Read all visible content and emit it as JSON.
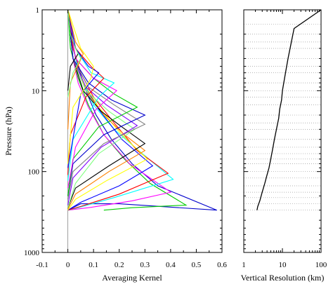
{
  "chart_data": [
    {
      "type": "line",
      "xlabel": "Averaging Kernel",
      "ylabel": "Pressure (hPa)",
      "xlim": [
        -0.1,
        0.6
      ],
      "ylim": [
        1000,
        1
      ],
      "y_scale": "log",
      "x_ticks": [
        "-0.1",
        "0",
        "0.1",
        "0.2",
        "0.3",
        "0.4",
        "0.5",
        "0.6"
      ],
      "y_ticks": [
        "1",
        "10",
        "100",
        "1000"
      ],
      "y_tick_values": [
        1,
        10,
        100,
        1000
      ],
      "colors": [
        "#0000cc",
        "#00cc00",
        "#ff00ff",
        "#00ffff",
        "#ff0000",
        "#0000ff",
        "#ffff00",
        "#ff8000",
        "#000000",
        "#80ff80",
        "#8000ff",
        "#808080"
      ],
      "series": [
        {
          "x": [
            0,
            0.01,
            0.02,
            0.04,
            0.07,
            0.11,
            0.17,
            0.25,
            0.35,
            0.58,
            0.2,
            0.05,
            0
          ],
          "y": [
            1,
            2,
            3,
            5,
            10,
            20,
            40,
            80,
            150,
            300,
            250,
            250,
            300
          ]
        },
        {
          "x": [
            0,
            0.01,
            0.04,
            0.08,
            0.14,
            0.22,
            0.32,
            0.46,
            0.25,
            0.14
          ],
          "y": [
            1,
            3,
            7,
            15,
            35,
            70,
            140,
            260,
            280,
            300
          ]
        },
        {
          "x": [
            0,
            0.01,
            0.02,
            0.04,
            0.08,
            0.14,
            0.24,
            0.4,
            0.25,
            0.08,
            0
          ],
          "y": [
            1,
            2,
            4,
            8,
            16,
            35,
            80,
            180,
            230,
            280,
            300
          ]
        },
        {
          "x": [
            0,
            0.02,
            0.05,
            0.1,
            0.18,
            0.29,
            0.41,
            0.18,
            0.04,
            0
          ],
          "y": [
            1,
            3,
            7,
            15,
            30,
            60,
            125,
            210,
            280,
            300
          ]
        },
        {
          "x": [
            0,
            0.02,
            0.05,
            0.1,
            0.18,
            0.27,
            0.39,
            0.2,
            0.05,
            0
          ],
          "y": [
            1,
            3,
            6,
            12,
            25,
            55,
            105,
            190,
            270,
            300
          ]
        },
        {
          "x": [
            0,
            0.02,
            0.06,
            0.12,
            0.21,
            0.33,
            0.2,
            0.05,
            0
          ],
          "y": [
            1,
            4,
            8,
            17,
            40,
            85,
            150,
            240,
            300
          ]
        },
        {
          "x": [
            0,
            0.02,
            0.06,
            0.12,
            0.21,
            0.31,
            0.15,
            0.03,
            0
          ],
          "y": [
            1,
            4,
            8,
            16,
            35,
            70,
            130,
            220,
            300
          ]
        },
        {
          "x": [
            0,
            0.02,
            0.07,
            0.14,
            0.22,
            0.3,
            0.16,
            0.03,
            0
          ],
          "y": [
            1,
            4,
            10,
            20,
            35,
            55,
            100,
            190,
            290
          ]
        },
        {
          "x": [
            0,
            0.02,
            0.06,
            0.13,
            0.21,
            0.3,
            0.16,
            0.03,
            0
          ],
          "y": [
            1,
            4,
            10,
            18,
            28,
            45,
            85,
            160,
            280
          ]
        },
        {
          "x": [
            0,
            0.02,
            0.07,
            0.16,
            0.26,
            0.12,
            0.03,
            0
          ],
          "y": [
            1,
            4,
            10,
            18,
            30,
            60,
            140,
            280
          ]
        },
        {
          "x": [
            0,
            0.02,
            0.07,
            0.15,
            0.27,
            0.13,
            0.02,
            0
          ],
          "y": [
            1,
            4,
            9,
            15,
            27,
            50,
            120,
            260
          ]
        },
        {
          "x": [
            0,
            0.02,
            0.08,
            0.18,
            0.3,
            0.14,
            0.02,
            0
          ],
          "y": [
            1,
            4,
            9,
            15,
            26,
            45,
            100,
            220
          ]
        },
        {
          "x": [
            0,
            0.02,
            0.08,
            0.17,
            0.3,
            0.14,
            0.02,
            0
          ],
          "y": [
            1,
            4,
            8,
            13,
            20,
            35,
            80,
            200
          ]
        },
        {
          "x": [
            0,
            0.03,
            0.1,
            0.18,
            0.27,
            0.12,
            0.02,
            0
          ],
          "y": [
            1,
            4,
            7,
            11,
            16,
            28,
            70,
            200
          ]
        },
        {
          "x": [
            0,
            0.03,
            0.1,
            0.19,
            0.11,
            0.03,
            0
          ],
          "y": [
            1,
            4,
            7,
            10,
            17,
            50,
            160
          ]
        },
        {
          "x": [
            0,
            0.03,
            0.09,
            0.18,
            0.12,
            0.02,
            0
          ],
          "y": [
            1,
            3,
            6,
            8,
            12,
            40,
            130
          ]
        },
        {
          "x": [
            0,
            0.03,
            0.09,
            0.14,
            0.07,
            0.01,
            0
          ],
          "y": [
            1,
            3,
            5,
            7,
            12,
            35,
            110
          ]
        },
        {
          "x": [
            0,
            0.03,
            0.08,
            0.12,
            0.05,
            0
          ],
          "y": [
            1,
            3,
            5,
            6,
            11,
            90
          ]
        },
        {
          "x": [
            0,
            0.05,
            0.1,
            0.09,
            0.02,
            0
          ],
          "y": [
            1,
            3,
            5,
            7,
            16,
            80
          ]
        },
        {
          "x": [
            0,
            0.03,
            0.06,
            0.01,
            0
          ],
          "y": [
            1,
            2.5,
            3.5,
            8,
            30
          ]
        },
        {
          "x": [
            0,
            0.01,
            0.02,
            0.04,
            0.01,
            0
          ],
          "y": [
            1,
            1.8,
            2.5,
            3.5,
            5,
            10
          ]
        },
        {
          "x": [
            0,
            0.01,
            0.03,
            0.05,
            0.02,
            0
          ],
          "y": [
            1,
            2,
            3,
            4,
            6,
            12
          ]
        }
      ]
    },
    {
      "type": "line",
      "xlabel": "Vertical Resolution (km)",
      "xlim": [
        1,
        100
      ],
      "x_scale": "log",
      "ylim": [
        1000,
        1
      ],
      "y_scale": "log",
      "x_ticks": [
        "1",
        "10",
        "100"
      ],
      "x_tick_values": [
        1,
        10,
        100
      ],
      "grid": "horizontal dotted",
      "grid_levels": [
        1.5,
        2,
        2.5,
        3,
        4,
        5,
        6,
        8,
        10,
        12,
        15,
        20,
        25,
        30,
        40,
        50,
        60,
        70,
        80,
        100,
        120,
        150,
        180,
        210,
        250,
        300
      ],
      "series": [
        {
          "x": [
            100,
            20,
            14,
            12,
            10,
            9.5,
            8.5,
            8,
            7,
            6.2,
            5.5,
            5,
            4.5,
            4,
            3.5,
            3,
            2.6,
            2.3,
            2.2
          ],
          "y": [
            1,
            1.7,
            4,
            6,
            10,
            13,
            17,
            22,
            30,
            40,
            55,
            70,
            90,
            110,
            140,
            180,
            230,
            270,
            300
          ]
        }
      ]
    }
  ]
}
